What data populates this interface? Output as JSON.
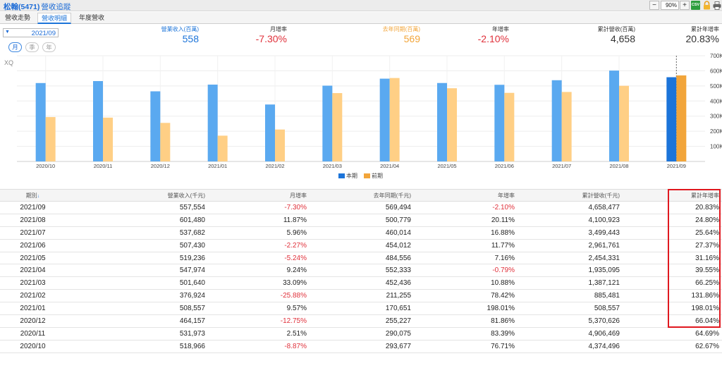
{
  "title": {
    "stock": "松翰(5471)",
    "page": "營收追蹤"
  },
  "toolbar": {
    "zoom": "90%",
    "zoom_out": "−",
    "zoom_in": "+",
    "csv": "CSV"
  },
  "tabs": [
    {
      "label": "營收走勢",
      "active": false
    },
    {
      "label": "營收明細",
      "active": true
    },
    {
      "label": "年度營收",
      "active": false
    }
  ],
  "date_select": "2021/09",
  "periods": [
    {
      "label": "月",
      "active": true
    },
    {
      "label": "季",
      "active": false
    },
    {
      "label": "年",
      "active": false
    }
  ],
  "watermark": "XQ",
  "summary": [
    {
      "label": "營業收入(百萬)",
      "value": "558",
      "label_color": "#1c74d9",
      "value_color": "#1c74d9"
    },
    {
      "label": "月增率",
      "value": "-7.30%",
      "label_color": "#333333",
      "value_color": "#e0313b"
    },
    {
      "label": "去年同期(百萬)",
      "value": "569",
      "label_color": "#f2a53a",
      "value_color": "#f2a53a"
    },
    {
      "label": "年增率",
      "value": "-2.10%",
      "label_color": "#333333",
      "value_color": "#e0313b"
    },
    {
      "label": "累計營收(百萬)",
      "value": "4,658",
      "label_color": "#333333",
      "value_color": "#333333"
    },
    {
      "label": "累計年增率",
      "value": "20.83%",
      "label_color": "#333333",
      "value_color": "#333333"
    }
  ],
  "colors": {
    "current": "#5aa9f0",
    "current_selected": "#1c74d9",
    "previous": "#ffcf85",
    "previous_selected": "#f2a53a",
    "negative": "#e0313b",
    "highlight": "#e0181f"
  },
  "chart_data": {
    "type": "bar",
    "categories": [
      "2020/10",
      "2020/11",
      "2020/12",
      "2021/01",
      "2021/02",
      "2021/03",
      "2021/04",
      "2021/05",
      "2021/06",
      "2021/07",
      "2021/08",
      "2021/09"
    ],
    "series": [
      {
        "name": "本期",
        "values": [
          518966,
          531973,
          464157,
          508557,
          376924,
          501640,
          547974,
          519236,
          507430,
          537682,
          601480,
          557554
        ]
      },
      {
        "name": "前期",
        "values": [
          293677,
          290075,
          255227,
          170651,
          211255,
          452436,
          552333,
          484556,
          454012,
          460014,
          500779,
          569494
        ]
      }
    ],
    "ylim": [
      0,
      700000
    ],
    "y_ticks": [
      "100K",
      "200K",
      "300K",
      "400K",
      "500K",
      "600K",
      "700K"
    ],
    "y_tick_values": [
      100000,
      200000,
      300000,
      400000,
      500000,
      600000,
      700000
    ],
    "selected_category": "2021/09",
    "legend": [
      "本期",
      "前期"
    ],
    "legend_position": "bottom-center",
    "grid": true
  },
  "table": {
    "columns": [
      "期別",
      "營業收入(千元)",
      "月增率",
      "去年同期(千元)",
      "年增率",
      "累計營收(千元)",
      "累計年增率"
    ],
    "sort_indicator": "↓",
    "rows": [
      [
        "2021/09",
        "557,554",
        "-7.30%",
        "569,494",
        "-2.10%",
        "4,658,477",
        "20.83%"
      ],
      [
        "2021/08",
        "601,480",
        "11.87%",
        "500,779",
        "20.11%",
        "4,100,923",
        "24.80%"
      ],
      [
        "2021/07",
        "537,682",
        "5.96%",
        "460,014",
        "16.88%",
        "3,499,443",
        "25.64%"
      ],
      [
        "2021/06",
        "507,430",
        "-2.27%",
        "454,012",
        "11.77%",
        "2,961,761",
        "27.37%"
      ],
      [
        "2021/05",
        "519,236",
        "-5.24%",
        "484,556",
        "7.16%",
        "2,454,331",
        "31.16%"
      ],
      [
        "2021/04",
        "547,974",
        "9.24%",
        "552,333",
        "-0.79%",
        "1,935,095",
        "39.55%"
      ],
      [
        "2021/03",
        "501,640",
        "33.09%",
        "452,436",
        "10.88%",
        "1,387,121",
        "66.25%"
      ],
      [
        "2021/02",
        "376,924",
        "-25.88%",
        "211,255",
        "78.42%",
        "885,481",
        "131.86%"
      ],
      [
        "2021/01",
        "508,557",
        "9.57%",
        "170,651",
        "198.01%",
        "508,557",
        "198.01%"
      ],
      [
        "2020/12",
        "464,157",
        "-12.75%",
        "255,227",
        "81.86%",
        "5,370,626",
        "66.04%"
      ],
      [
        "2020/11",
        "531,973",
        "2.51%",
        "290,075",
        "83.39%",
        "4,906,469",
        "64.69%"
      ],
      [
        "2020/10",
        "518,966",
        "-8.87%",
        "293,677",
        "76.71%",
        "4,374,496",
        "62.67%"
      ]
    ]
  }
}
